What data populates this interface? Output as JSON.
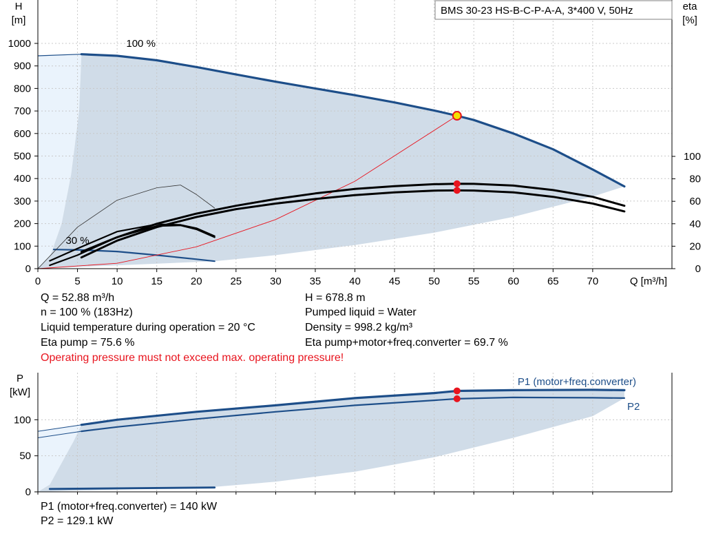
{
  "chart_data": [
    {
      "type": "line",
      "title": "BMS 30-23 HS-B-C-P-A-A, 3*400 V, 50Hz",
      "xlabel": "Q [m³/h]",
      "ylabel_lines": [
        "H",
        "[m]"
      ],
      "y2label_lines": [
        "eta",
        "[%]"
      ],
      "xlim": [
        0,
        80
      ],
      "ylim": [
        0,
        1000
      ],
      "y2lim": [
        0,
        100
      ],
      "xticks": [
        0,
        5,
        10,
        15,
        20,
        25,
        30,
        35,
        40,
        45,
        50,
        55,
        60,
        65,
        70
      ],
      "yticks": [
        0,
        100,
        200,
        300,
        400,
        500,
        600,
        700,
        800,
        900,
        1000
      ],
      "y2ticks": [
        0,
        20,
        40,
        60,
        80,
        100
      ],
      "grid": true,
      "annotations": [
        {
          "text": "100 %",
          "x": 13,
          "y": 985
        },
        {
          "text": "30 %",
          "x": 5,
          "y": 110
        }
      ],
      "operating_point": {
        "x": 52.88,
        "y": 678.8
      },
      "series": [
        {
          "role": "head-100",
          "color": "#1d4e89",
          "x": [
            5.5,
            10,
            15,
            20,
            25,
            30,
            35,
            40,
            45,
            50,
            52.88,
            55,
            60,
            65,
            70,
            74
          ],
          "y": [
            952,
            945,
            925,
            895,
            862,
            830,
            800,
            770,
            738,
            702,
            678.8,
            660,
            600,
            530,
            440,
            365
          ]
        },
        {
          "role": "head-30",
          "color": "#1d4e89",
          "x": [
            2,
            5.5,
            10,
            15,
            20,
            22.3
          ],
          "y": [
            85,
            83,
            76,
            60,
            42,
            33
          ]
        },
        {
          "role": "head-min-edge",
          "color": "#1d4e89",
          "x": [
            0,
            5.5
          ],
          "y": [
            945,
            952
          ]
        },
        {
          "role": "system-curve",
          "color": "#e8141e",
          "x": [
            0,
            10,
            20,
            30,
            40,
            52.88
          ],
          "y": [
            0,
            24,
            97,
            218,
            388,
            678.8
          ]
        },
        {
          "role": "eta-pump-100",
          "color": "#000000",
          "axis": "y2",
          "x": [
            5.5,
            10,
            15,
            20,
            25,
            30,
            35,
            40,
            45,
            50,
            52.88,
            55,
            60,
            65,
            70,
            74
          ],
          "y": [
            15,
            28,
            40,
            49,
            56,
            62,
            67,
            71,
            73.5,
            75.2,
            75.6,
            75.5,
            74,
            70,
            64,
            56
          ]
        },
        {
          "role": "eta-total-100",
          "color": "#000000",
          "axis": "y2",
          "x": [
            5.5,
            10,
            15,
            20,
            25,
            30,
            35,
            40,
            45,
            50,
            52.88,
            55,
            60,
            65,
            70,
            74
          ],
          "y": [
            10,
            25,
            37,
            46,
            53,
            58,
            62,
            65.5,
            68,
            69.5,
            69.7,
            69.6,
            68,
            64,
            58,
            51
          ]
        },
        {
          "role": "eta-pump-30",
          "color": "#000000",
          "axis": "y2",
          "x": [
            1.5,
            5,
            10,
            15,
            18,
            20,
            22.3
          ],
          "y": [
            7,
            18,
            33,
            39.5,
            39,
            36,
            29
          ]
        },
        {
          "role": "eta-total-30",
          "color": "#000000",
          "axis": "y2",
          "x": [
            1.5,
            5,
            10,
            15,
            18,
            20,
            22.3
          ],
          "y": [
            3,
            12,
            28,
            38,
            38.5,
            35,
            28
          ]
        },
        {
          "role": "eta-pump-min",
          "color": "#333333",
          "axis": "y2",
          "x": [
            0,
            5,
            10,
            15,
            18,
            20,
            22.3
          ],
          "y": [
            0,
            37,
            61,
            72,
            74.5,
            66,
            54
          ]
        }
      ],
      "shaded_envelope": {
        "color": "#d0dce8",
        "upper": {
          "x": [
            5.5,
            10,
            15,
            20,
            25,
            30,
            35,
            40,
            45,
            50,
            55,
            60,
            65,
            70,
            74
          ],
          "y": [
            952,
            945,
            925,
            895,
            862,
            830,
            800,
            770,
            738,
            702,
            660,
            600,
            530,
            440,
            365
          ]
        },
        "lower": {
          "x": [
            22.3,
            30,
            40,
            50,
            60,
            70,
            74
          ],
          "y": [
            33,
            60,
            105,
            160,
            230,
            320,
            365
          ]
        },
        "left_edge": {
          "x": [
            5.5,
            5.2,
            4.2,
            3.0,
            1.6,
            0
          ],
          "y": [
            952,
            700,
            420,
            200,
            60,
            0
          ]
        },
        "light_wedge": {
          "color": "#eaf3fc",
          "x": [
            0,
            5.5,
            5.2,
            4.2,
            3.0,
            1.6,
            0
          ],
          "y": [
            945,
            952,
            700,
            420,
            200,
            60,
            0
          ]
        }
      }
    },
    {
      "type": "line",
      "ylabel_lines": [
        "P",
        "[kW]"
      ],
      "xlim": [
        0,
        80
      ],
      "ylim": [
        0,
        150
      ],
      "yticks": [
        0,
        50,
        100
      ],
      "grid": true,
      "legend": [
        "P1 (motor+freq.converter)",
        "P2"
      ],
      "series": [
        {
          "name": "P1 (motor+freq.converter)",
          "color": "#1d4e89",
          "x": [
            5.5,
            10,
            20,
            30,
            40,
            50,
            52.88,
            60,
            70,
            74
          ],
          "y": [
            93,
            100,
            111,
            120,
            130,
            137,
            140,
            141,
            141.5,
            141
          ]
        },
        {
          "name": "P2",
          "color": "#1d4e89",
          "x": [
            5.5,
            10,
            20,
            30,
            40,
            50,
            52.88,
            60,
            70,
            74
          ],
          "y": [
            84,
            90,
            101,
            111,
            120,
            127,
            129.1,
            131,
            130.5,
            130
          ]
        },
        {
          "role": "p1-left-extension",
          "color": "#1d4e89",
          "x": [
            0,
            5.5
          ],
          "y": [
            84,
            93
          ]
        },
        {
          "role": "p2-left-extension",
          "color": "#1d4e89",
          "x": [
            0,
            5.5
          ],
          "y": [
            75,
            84
          ]
        },
        {
          "role": "low-speed-power",
          "color": "#1d4e89",
          "x": [
            1.5,
            22.3
          ],
          "y": [
            4,
            6
          ]
        }
      ],
      "operating_points": [
        {
          "x": 52.88,
          "y": 140
        },
        {
          "x": 52.88,
          "y": 129.1
        }
      ],
      "shaded_envelope": {
        "color": "#d0dce8",
        "upper": {
          "x": [
            5.5,
            10,
            20,
            30,
            40,
            50,
            60,
            70,
            74
          ],
          "y": [
            93,
            100,
            111,
            120,
            130,
            137,
            141,
            141.5,
            141
          ]
        },
        "lower": {
          "x": [
            22.3,
            30,
            40,
            50,
            60,
            70,
            74
          ],
          "y": [
            7,
            14,
            28,
            48,
            75,
            105,
            130
          ]
        },
        "left_edge": {
          "x": [
            5.5,
            4.5,
            3,
            1.5,
            0
          ],
          "y": [
            93,
            70,
            40,
            10,
            0
          ]
        },
        "light_wedge": {
          "color": "#eaf3fc",
          "x": [
            0,
            5.5,
            4.5,
            3,
            1.5,
            0
          ],
          "y": [
            84,
            93,
            70,
            40,
            10,
            0
          ]
        }
      }
    }
  ],
  "info_lines": [
    "Q = 52.88 m³/h",
    "n = 100 % (183Hz)",
    "Liquid temperature during operation = 20 °C",
    "Eta pump = 75.6 %",
    "H = 678.8 m",
    "Pumped liquid = Water",
    "Density = 998.2 kg/m³",
    "Eta pump+motor+freq.converter = 69.7 %"
  ],
  "warning": "Operating pressure must not exceed max. operating pressure!",
  "power_info_lines": [
    "P1 (motor+freq.converter) = 140 kW",
    "P2 = 129.1 kW"
  ]
}
